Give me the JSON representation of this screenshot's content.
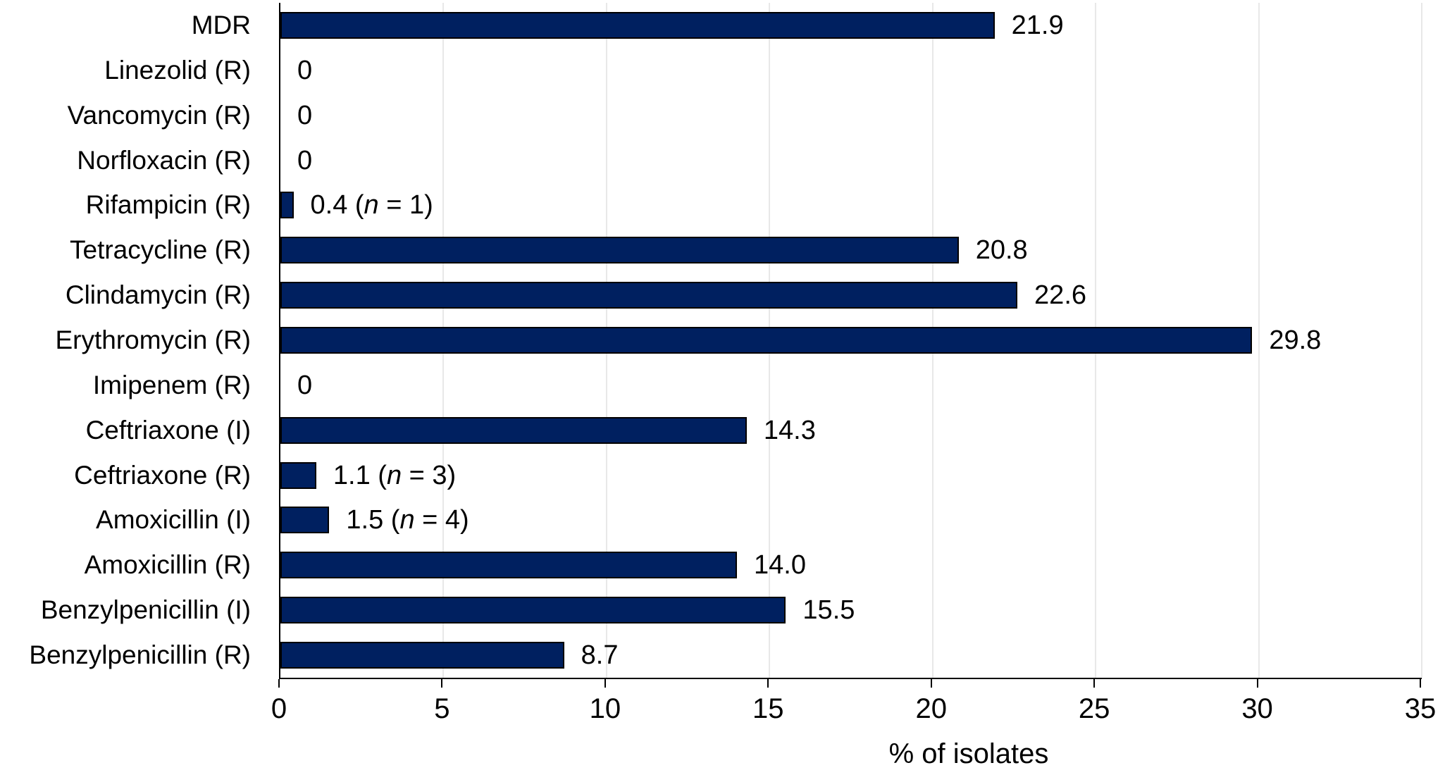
{
  "chart_data": {
    "type": "bar",
    "orientation": "horizontal",
    "title": "",
    "xlabel": "% of isolates",
    "ylabel": "",
    "xlim": [
      0,
      35
    ],
    "xticks": [
      0,
      5,
      10,
      15,
      20,
      25,
      30,
      35
    ],
    "grid": "vertical-light",
    "legend": "none",
    "bar_color": "#002060",
    "bar_border_color": "#000000",
    "gridline_color": "#e8e8e8",
    "axis_color": "#000000",
    "categories": [
      "MDR",
      "Linezolid (R)",
      "Vancomycin (R)",
      "Norfloxacin (R)",
      "Rifampicin (R)",
      "Tetracycline (R)",
      "Clindamycin (R)",
      "Erythromycin (R)",
      "Imipenem (R)",
      "Ceftriaxone (I)",
      "Ceftriaxone (R)",
      "Amoxicillin (I)",
      "Amoxicillin (R)",
      "Benzylpenicillin (I)",
      "Benzylpenicillin (R)"
    ],
    "values": [
      21.9,
      0,
      0,
      0,
      0.4,
      20.8,
      22.6,
      29.8,
      0,
      14.3,
      1.1,
      1.5,
      14.0,
      15.5,
      8.7
    ],
    "value_labels": [
      "21.9",
      "0",
      "0",
      "0",
      "0.4 (n = 1)",
      "20.8",
      "22.6",
      "29.8",
      "0",
      "14.3",
      "1.1 (n = 3)",
      "1.5 (n = 4)",
      "14.0",
      "15.5",
      "8.7"
    ]
  }
}
